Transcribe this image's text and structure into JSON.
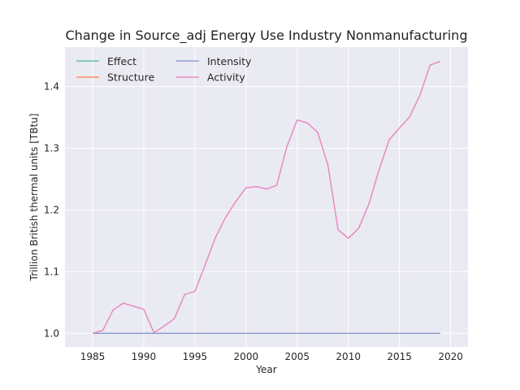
{
  "chart_data": {
    "type": "line",
    "title": "Change in Source_adj Energy Use Industry Nonmanufacturing",
    "xlabel": "Year",
    "ylabel": "Trillion British thermal units [TBtu]",
    "xlim": [
      1982.3,
      2021.7
    ],
    "ylim": [
      0.978,
      1.464
    ],
    "xticks": [
      1985,
      1990,
      1995,
      2000,
      2005,
      2010,
      2015,
      2020
    ],
    "yticks": [
      1.0,
      1.1,
      1.2,
      1.3,
      1.4
    ],
    "ytick_labels": [
      "1.0",
      "1.1",
      "1.2",
      "1.3",
      "1.4"
    ],
    "grid": true,
    "legend_position": "top-left",
    "background": "#eaeaf2",
    "x": [
      1985,
      1986,
      1987,
      1988,
      1989,
      1990,
      1991,
      1992,
      1993,
      1994,
      1995,
      1996,
      1997,
      1998,
      1999,
      2000,
      2001,
      2002,
      2003,
      2004,
      2005,
      2006,
      2007,
      2008,
      2009,
      2010,
      2011,
      2012,
      2013,
      2014,
      2015,
      2016,
      2017,
      2018,
      2019
    ],
    "series": [
      {
        "name": "Effect",
        "color": "#66c2a5",
        "values": [
          1,
          1,
          1,
          1,
          1,
          1,
          1,
          1,
          1,
          1,
          1,
          1,
          1,
          1,
          1,
          1,
          1,
          1,
          1,
          1,
          1,
          1,
          1,
          1,
          1,
          1,
          1,
          1,
          1,
          1,
          1,
          1,
          1,
          1,
          1
        ]
      },
      {
        "name": "Structure",
        "color": "#fc8d62",
        "values": [
          1,
          1,
          1,
          1,
          1,
          1,
          1,
          1,
          1,
          1,
          1,
          1,
          1,
          1,
          1,
          1,
          1,
          1,
          1,
          1,
          1,
          1,
          1,
          1,
          1,
          1,
          1,
          1,
          1,
          1,
          1,
          1,
          1,
          1,
          1
        ]
      },
      {
        "name": "Intensity",
        "color": "#8da0cb",
        "values": [
          1,
          1,
          1,
          1,
          1,
          1,
          1,
          1,
          1,
          1,
          1,
          1,
          1,
          1,
          1,
          1,
          1,
          1,
          1,
          1,
          1,
          1,
          1,
          1,
          1,
          1,
          1,
          1,
          1,
          1,
          1,
          1,
          1,
          1,
          1
        ]
      },
      {
        "name": "Activity",
        "color": "#e78ac3",
        "values": [
          1.0,
          1.005,
          1.038,
          1.049,
          1.044,
          1.039,
          1.001,
          1.012,
          1.024,
          1.063,
          1.068,
          1.111,
          1.155,
          1.188,
          1.214,
          1.236,
          1.238,
          1.234,
          1.24,
          1.303,
          1.346,
          1.341,
          1.326,
          1.273,
          1.168,
          1.154,
          1.17,
          1.209,
          1.265,
          1.314,
          1.333,
          1.351,
          1.386,
          1.435,
          1.441
        ]
      }
    ]
  }
}
